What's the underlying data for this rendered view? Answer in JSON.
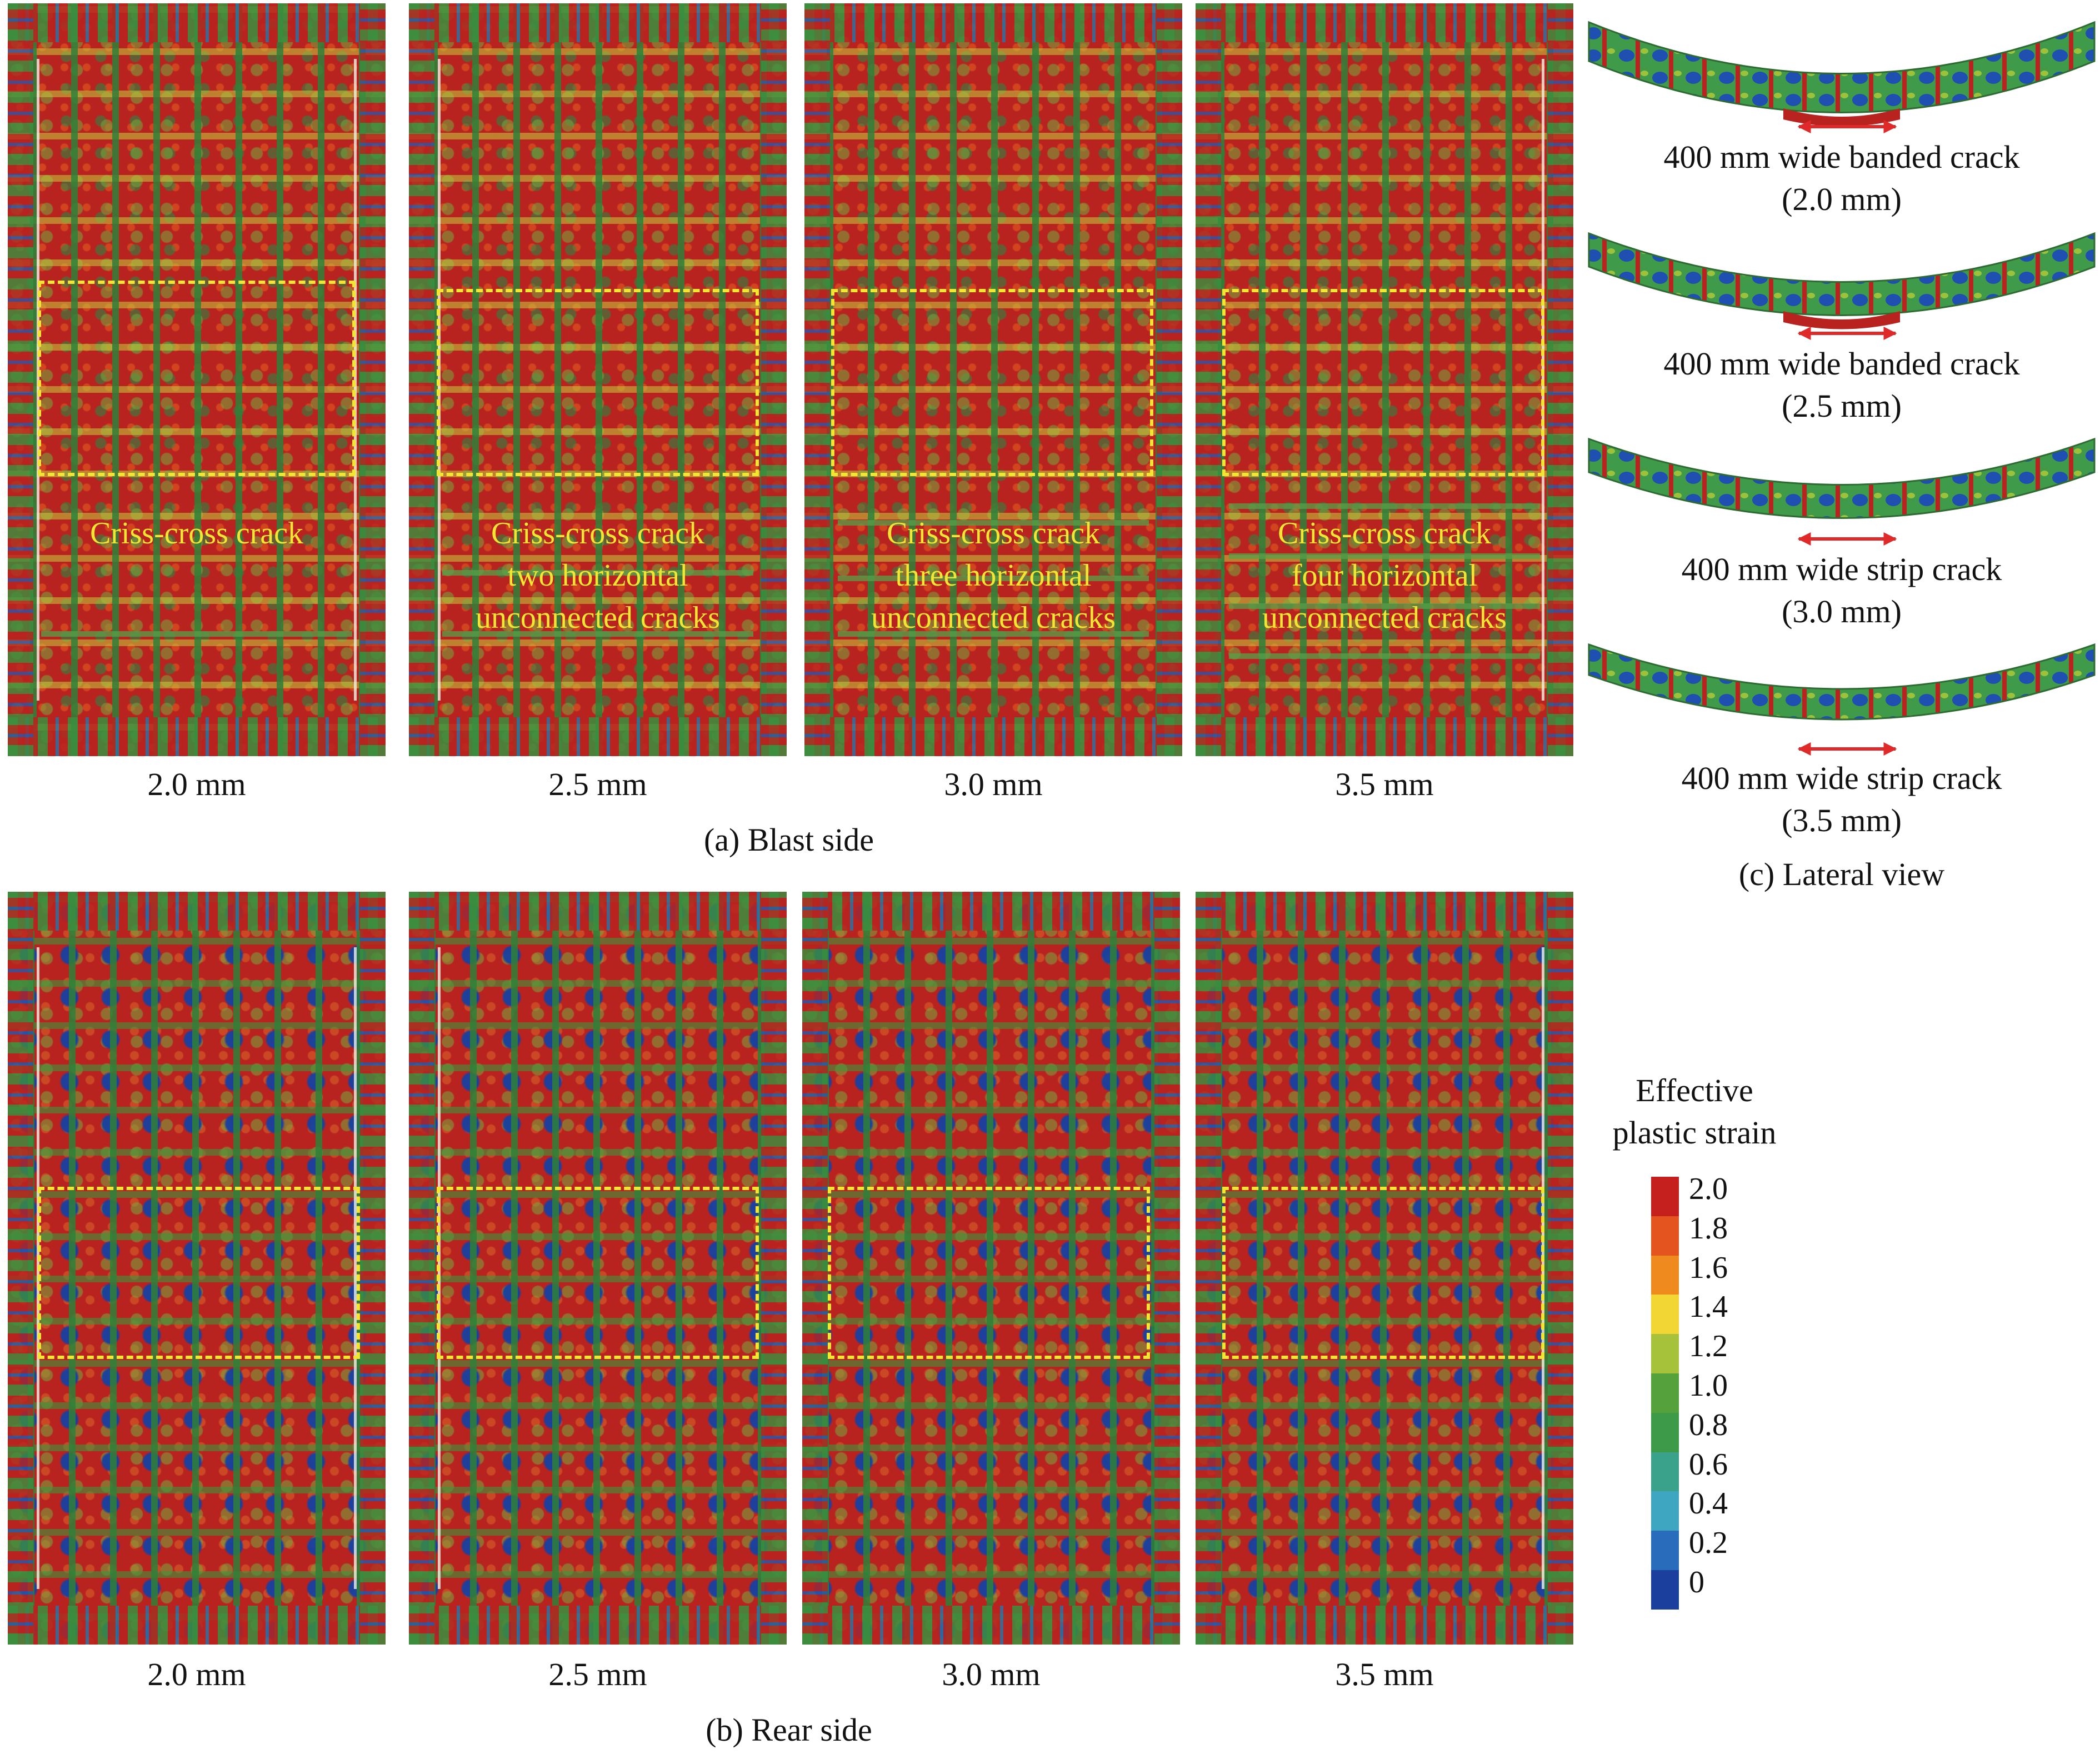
{
  "blast_side": {
    "caption": "(a) Blast side",
    "panels": [
      {
        "thickness": "2.0 mm",
        "label_lines": [
          "Criss-cross crack"
        ]
      },
      {
        "thickness": "2.5 mm",
        "label_lines": [
          "Criss-cross crack",
          "two horizontal",
          "unconnected cracks"
        ]
      },
      {
        "thickness": "3.0 mm",
        "label_lines": [
          "Criss-cross crack",
          "three horizontal",
          "unconnected cracks"
        ]
      },
      {
        "thickness": "3.5 mm",
        "label_lines": [
          "Criss-cross crack",
          "four horizontal",
          "unconnected cracks"
        ]
      }
    ]
  },
  "rear_side": {
    "caption": "(b) Rear side",
    "panels": [
      {
        "thickness": "2.0 mm"
      },
      {
        "thickness": "2.5 mm"
      },
      {
        "thickness": "3.0 mm"
      },
      {
        "thickness": "3.5 mm"
      }
    ]
  },
  "lateral_view": {
    "caption": "(c) Lateral view",
    "items": [
      {
        "line1": "400 mm wide banded crack",
        "line2": "(2.0 mm)"
      },
      {
        "line1": "400 mm wide banded crack",
        "line2": "(2.5 mm)"
      },
      {
        "line1": "400 mm wide strip crack",
        "line2": "(3.0 mm)"
      },
      {
        "line1": "400 mm wide strip crack",
        "line2": "(3.5 mm)"
      }
    ],
    "arrow_color": "#e02a2a"
  },
  "legend": {
    "title_line1": "Effective",
    "title_line2": "plastic strain",
    "ticks": [
      "2.0",
      "1.8",
      "1.6",
      "1.4",
      "1.2",
      "1.0",
      "0.8",
      "0.6",
      "0.4",
      "0.2",
      "0"
    ],
    "colors": [
      "#c5201e",
      "#e4541f",
      "#ee8a1e",
      "#f2d634",
      "#a5c23a",
      "#55a23d",
      "#3c9a48",
      "#3aa28a",
      "#3fa6c2",
      "#2a6cbc",
      "#1b3f9c"
    ]
  },
  "colors": {
    "dashed_box": "#f2e633",
    "high_strain": "#b8231f",
    "mid_strain": "#3a8f3f",
    "low_strain": "#1b3f9c"
  }
}
